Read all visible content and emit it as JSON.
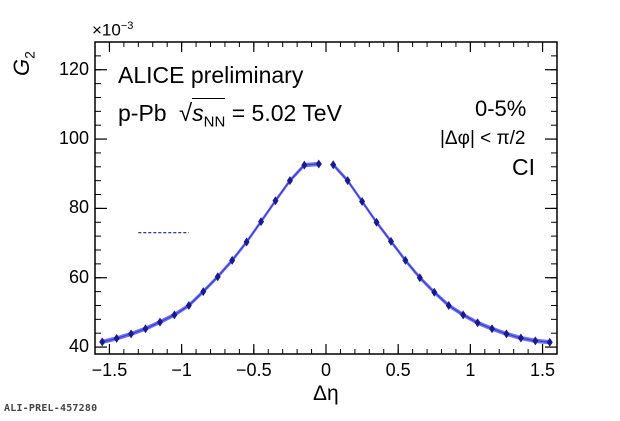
{
  "chart_data": {
    "type": "line",
    "title": "",
    "xlabel": "Δη",
    "ylabel": "G",
    "ylabel_subscript": "2",
    "y_multiplier": "×10",
    "y_multiplier_exponent": "−3",
    "xlim": [
      -1.6,
      1.6
    ],
    "ylim": [
      38,
      128
    ],
    "x_ticks": [
      -1.5,
      -1,
      -0.5,
      0,
      0.5,
      1,
      1.5
    ],
    "x_tick_labels": [
      "−1.5",
      "−1",
      "−0.5",
      "0",
      "0.5",
      "1",
      "1.5"
    ],
    "y_ticks": [
      40,
      60,
      80,
      100,
      120
    ],
    "y_tick_labels": [
      "40",
      "60",
      "80",
      "100",
      "120"
    ],
    "grid": false,
    "annotations": {
      "experiment": "ALICE preliminary",
      "system_prefix": "p-Pb",
      "energy_sym": "s",
      "energy_sub": "NN",
      "energy_value": "= 5.02 TeV",
      "centrality": "0-5%",
      "dphi_cut": "|Δφ| < π/2",
      "charge_combination": "CI"
    },
    "reference_line": {
      "y": 73,
      "x_range": [
        -1.3,
        -0.95
      ]
    },
    "series": [
      {
        "color": "#1a1a8c",
        "band_color": "#5a5aee",
        "x": [
          -1.55,
          -1.45,
          -1.35,
          -1.25,
          -1.15,
          -1.05,
          -0.95,
          -0.85,
          -0.75,
          -0.65,
          -0.55,
          -0.45,
          -0.35,
          -0.25,
          -0.15,
          -0.05,
          0.05,
          0.15,
          0.25,
          0.35,
          0.45,
          0.55,
          0.65,
          0.75,
          0.85,
          0.95,
          1.05,
          1.15,
          1.25,
          1.35,
          1.45,
          1.55
        ],
        "y": [
          41.5,
          42.5,
          43.8,
          45.3,
          47.2,
          49.3,
          52.0,
          56.0,
          60.3,
          65.0,
          70.3,
          76.2,
          82.2,
          88.0,
          92.5,
          92.8,
          92.6,
          88.0,
          82.0,
          76.0,
          70.5,
          65.0,
          60.0,
          55.8,
          52.0,
          49.3,
          47.0,
          45.3,
          43.8,
          42.6,
          41.8,
          41.4
        ]
      }
    ]
  },
  "footer": {
    "id": "ALI-PREL-457280"
  }
}
